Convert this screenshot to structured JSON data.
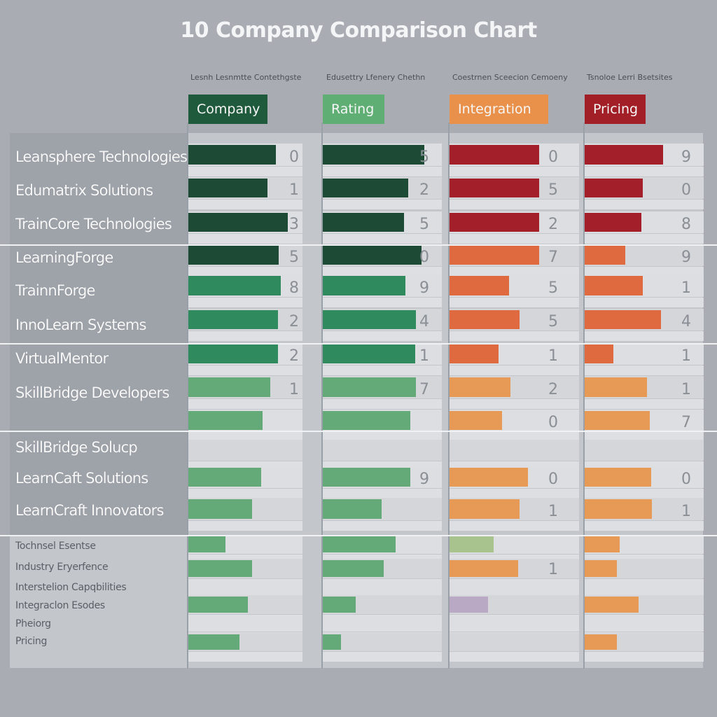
{
  "chart_data": {
    "type": "bar",
    "title": "10 Company Comparison Chart",
    "subheaders": [
      "Lesnh Lesnmtte Contethgste",
      "Edusettry Lfenery Chethn",
      "Coestrnen Sceecion Cemoeny",
      "Tsnoloe Lerri Bsetsites"
    ],
    "column_headers": [
      "Company",
      "Rating",
      "Integration",
      "Pricing"
    ],
    "rows": [
      "Leansphere Technologies",
      "Edumatrix Solutions",
      "TrainCore Technologies",
      "LearningForge",
      "TrainnForge",
      "InnoLearn Systems",
      "VirtualMentor",
      "SkillBridge Developers",
      "",
      "SkillBridge Solucp",
      "LearnCaft Solutions",
      "LearnCraft Innovators",
      "Tochnsel Esentse",
      "Industry Eryerfence",
      "Interstelion Capqbilities",
      "Integraclon Esodes",
      "Pheiorg",
      "Pricing"
    ],
    "series": [
      {
        "name": "Company",
        "values": [
          0.85,
          0.77,
          0.97,
          0.88,
          0.9,
          0.87,
          0.87,
          0.8,
          0.72,
          0,
          0.71,
          0.62,
          0.36,
          0.62,
          0,
          0.58,
          0,
          0.5
        ]
      },
      {
        "name": "Rating",
        "values": [
          0.95,
          0.8,
          0.76,
          0.92,
          0.77,
          0.87,
          0.86,
          0.87,
          0.82,
          0,
          0.82,
          0.55,
          0.68,
          0.57,
          0,
          0.31,
          0,
          0.17
        ]
      },
      {
        "name": "Integration",
        "values": [
          0.77,
          0.77,
          0.77,
          0.77,
          0.51,
          0.6,
          0.42,
          0.52,
          0.45,
          0,
          0.67,
          0.6,
          0.38,
          0.59,
          0,
          0.33,
          0,
          0
        ]
      },
      {
        "name": "Pricing",
        "values": [
          0.73,
          0.54,
          0.53,
          0.38,
          0.54,
          0.71,
          0.27,
          0.58,
          0.61,
          0,
          0.62,
          0.63,
          0.33,
          0.3,
          0,
          0.5,
          0,
          0.3
        ]
      }
    ],
    "digits": [
      [
        "0",
        "5",
        "0",
        "9"
      ],
      [
        "1",
        "2",
        "5",
        "0"
      ],
      [
        "3",
        "5",
        "2",
        "8"
      ],
      [
        "5",
        "0",
        "7",
        "9"
      ],
      [
        "8",
        "9",
        "5",
        "1"
      ],
      [
        "2",
        "4",
        "5",
        "4"
      ],
      [
        "2",
        "1",
        "1",
        "1"
      ],
      [
        "1",
        "7",
        "2",
        "1"
      ],
      [
        "",
        "",
        "0",
        "7"
      ],
      [
        "",
        "",
        "",
        ""
      ],
      [
        "",
        "9",
        "0",
        "0"
      ],
      [
        "",
        "",
        "1",
        "1"
      ],
      [
        "",
        "",
        "",
        ""
      ],
      [
        "",
        "",
        "1",
        ""
      ],
      [
        "",
        "",
        "",
        ""
      ],
      [
        "",
        "",
        "",
        ""
      ],
      [
        "",
        "",
        "",
        ""
      ],
      [
        "",
        "",
        "",
        ""
      ]
    ],
    "colors": {
      "dark_green": "#1c4a35",
      "mid_green": "#2f8a5d",
      "light_green": "#63aa78",
      "dark_red": "#a3202a",
      "orange": "#df6a40",
      "light_orange": "#e79a55",
      "pale_green": "#a8c38e",
      "lavender": "#b9a9c4",
      "header_company": "#1f5a3c",
      "header_rating": "#5fae74",
      "header_integration": "#e9904a",
      "header_pricing": "#a31f27"
    }
  }
}
